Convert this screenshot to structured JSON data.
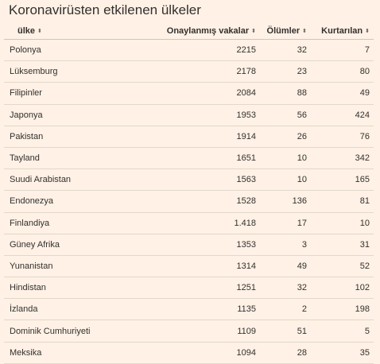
{
  "page": {
    "title": "Koronavirüsten etkilenen ülkeler"
  },
  "table": {
    "columns": [
      {
        "key": "country",
        "label": "ülke",
        "sortable": true
      },
      {
        "key": "cases",
        "label": "Onaylanmış vakalar",
        "sortable": true
      },
      {
        "key": "deaths",
        "label": "Ölümler",
        "sortable": true
      },
      {
        "key": "recovered",
        "label": "Kurtarılan",
        "sortable": true
      }
    ],
    "sort_icon": "sort-updown-icon",
    "sort_glyph": "⬍",
    "rows": [
      {
        "country": "Polonya",
        "cases": "2215",
        "deaths": "32",
        "recovered": "7"
      },
      {
        "country": "Lüksemburg",
        "cases": "2178",
        "deaths": "23",
        "recovered": "80"
      },
      {
        "country": "Filipinler",
        "cases": "2084",
        "deaths": "88",
        "recovered": "49"
      },
      {
        "country": "Japonya",
        "cases": "1953",
        "deaths": "56",
        "recovered": "424"
      },
      {
        "country": "Pakistan",
        "cases": "1914",
        "deaths": "26",
        "recovered": "76"
      },
      {
        "country": "Tayland",
        "cases": "1651",
        "deaths": "10",
        "recovered": "342"
      },
      {
        "country": "Suudi Arabistan",
        "cases": "1563",
        "deaths": "10",
        "recovered": "165"
      },
      {
        "country": "Endonezya",
        "cases": "1528",
        "deaths": "136",
        "recovered": "81"
      },
      {
        "country": "Finlandiya",
        "cases": "1.418",
        "deaths": "17",
        "recovered": "10"
      },
      {
        "country": "Güney Afrika",
        "cases": "1353",
        "deaths": "3",
        "recovered": "31"
      },
      {
        "country": "Yunanistan",
        "cases": "1314",
        "deaths": "49",
        "recovered": "52"
      },
      {
        "country": "Hindistan",
        "cases": "1251",
        "deaths": "32",
        "recovered": "102"
      },
      {
        "country": "İzlanda",
        "cases": "1135",
        "deaths": "2",
        "recovered": "198"
      },
      {
        "country": "Dominik Cumhuriyeti",
        "cases": "1109",
        "deaths": "51",
        "recovered": "5"
      },
      {
        "country": "Meksika",
        "cases": "1094",
        "deaths": "28",
        "recovered": "35"
      }
    ]
  },
  "colors": {
    "background": "#fff1e5",
    "text": "#33302e",
    "row_divider": "#e1d8cb"
  }
}
